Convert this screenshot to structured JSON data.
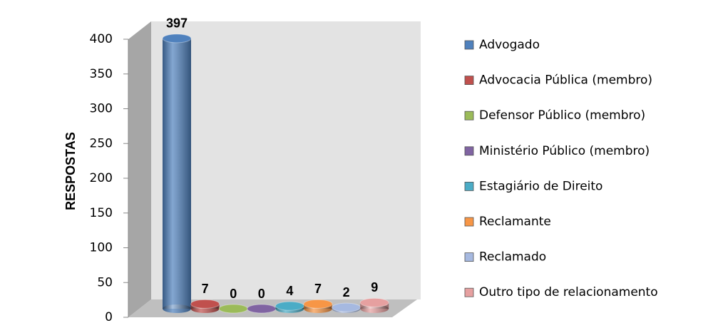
{
  "chart_data": {
    "type": "bar",
    "ylabel": "RESPOSTAS",
    "ylim": [
      0,
      400
    ],
    "yticks": [
      0,
      50,
      100,
      150,
      200,
      250,
      300,
      350,
      400
    ],
    "series": [
      {
        "name": "Advogado",
        "color": "#4f81bd",
        "values": [
          397
        ]
      },
      {
        "name": "Advocacia Pública (membro)",
        "color": "#c0504d",
        "values": [
          7
        ]
      },
      {
        "name": "Defensor Público (membro)",
        "color": "#9bbb59",
        "values": [
          0
        ]
      },
      {
        "name": "Ministério Público (membro)",
        "color": "#8064a2",
        "values": [
          0
        ]
      },
      {
        "name": "Estagiário de Direito",
        "color": "#4bacc6",
        "values": [
          4
        ]
      },
      {
        "name": "Reclamante",
        "color": "#f79646",
        "values": [
          7
        ]
      },
      {
        "name": "Reclamado",
        "color": "#a6b9e0",
        "values": [
          2
        ]
      },
      {
        "name": "Outro tipo de relacionamento",
        "color": "#e6a0a0",
        "values": [
          9
        ]
      }
    ]
  }
}
